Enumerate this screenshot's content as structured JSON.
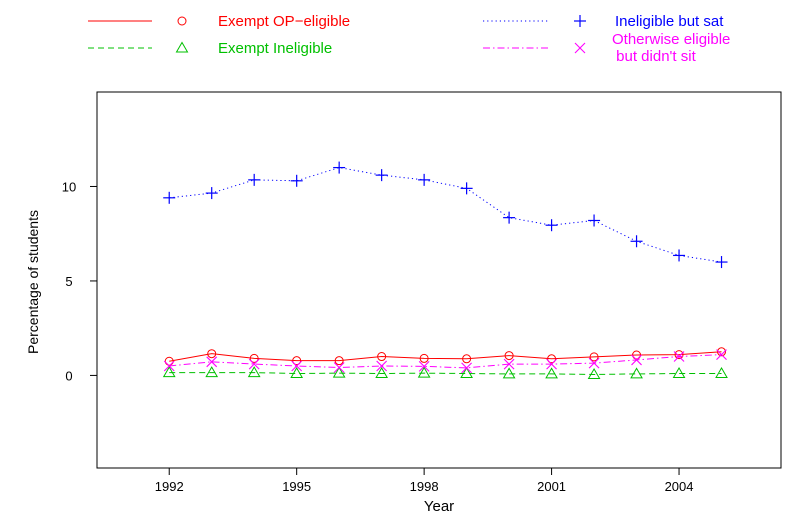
{
  "chart_data": {
    "type": "line",
    "title": "",
    "xlabel": "Year",
    "ylabel": "Percentage of students",
    "x": [
      1992,
      1993,
      1994,
      1995,
      1996,
      1997,
      1998,
      1999,
      2000,
      2001,
      2002,
      2003,
      2004,
      2005
    ],
    "xlim": [
      1990.3,
      2006.4
    ],
    "ylim": [
      -4.9,
      15.0
    ],
    "xticks": [
      1992,
      1995,
      1998,
      2001,
      2004
    ],
    "yticks": [
      0,
      5,
      10
    ],
    "grid": false,
    "legend_position": "top",
    "series": [
      {
        "name": "Exempt OP−eligible",
        "color": "#ff0000",
        "dash": "solid",
        "marker": "circle",
        "values": [
          0.75,
          1.15,
          0.9,
          0.78,
          0.78,
          1.0,
          0.9,
          0.88,
          1.05,
          0.88,
          0.98,
          1.08,
          1.1,
          1.25
        ]
      },
      {
        "name": "Exempt Ineligible",
        "color": "#00c000",
        "dash": "dashed",
        "marker": "triangle",
        "values": [
          0.15,
          0.15,
          0.15,
          0.1,
          0.12,
          0.1,
          0.12,
          0.1,
          0.08,
          0.08,
          0.05,
          0.08,
          0.1,
          0.1
        ]
      },
      {
        "name": "Ineligible but sat",
        "color": "#0000ff",
        "dash": "dotted",
        "marker": "plus",
        "values": [
          9.4,
          9.65,
          10.35,
          10.3,
          11.0,
          10.6,
          10.35,
          9.9,
          8.35,
          7.95,
          8.2,
          7.1,
          6.35,
          6.0
        ]
      },
      {
        "name": "Otherwise eligible\n but didn't sit",
        "color": "#ff00ff",
        "dash": "dashdot",
        "marker": "cross",
        "values": [
          0.5,
          0.72,
          0.6,
          0.5,
          0.42,
          0.5,
          0.48,
          0.4,
          0.6,
          0.6,
          0.65,
          0.82,
          1.0,
          1.1
        ]
      }
    ]
  }
}
